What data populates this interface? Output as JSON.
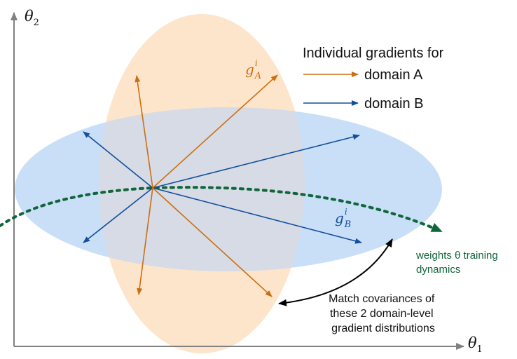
{
  "axes": {
    "y_label": "θ",
    "y_sub": "2",
    "x_label": "θ",
    "x_sub": "1"
  },
  "legend": {
    "title": "Individual gradients for",
    "domain_a": "domain A",
    "domain_b": "domain B"
  },
  "gradient_labels": {
    "a_base": "g",
    "a_sup": "i",
    "a_sub": "A",
    "b_base": "g",
    "b_sup": "i",
    "b_sub": "B"
  },
  "dynamics": {
    "line1": "weights θ training",
    "line2": "dynamics"
  },
  "annotation": {
    "line1": "Match covariances of",
    "line2": "these 2 domain-level",
    "line3": "gradient distributions"
  },
  "colors": {
    "domain_a": "#cc6e0e",
    "domain_b": "#134f9c",
    "ellipse_a_fill": "#fde5cc",
    "ellipse_b_fill": "#c8dff7",
    "overlap_fill": "#d7dbe5",
    "dynamics": "#11653a",
    "axis": "#808080",
    "text": "#111111"
  }
}
